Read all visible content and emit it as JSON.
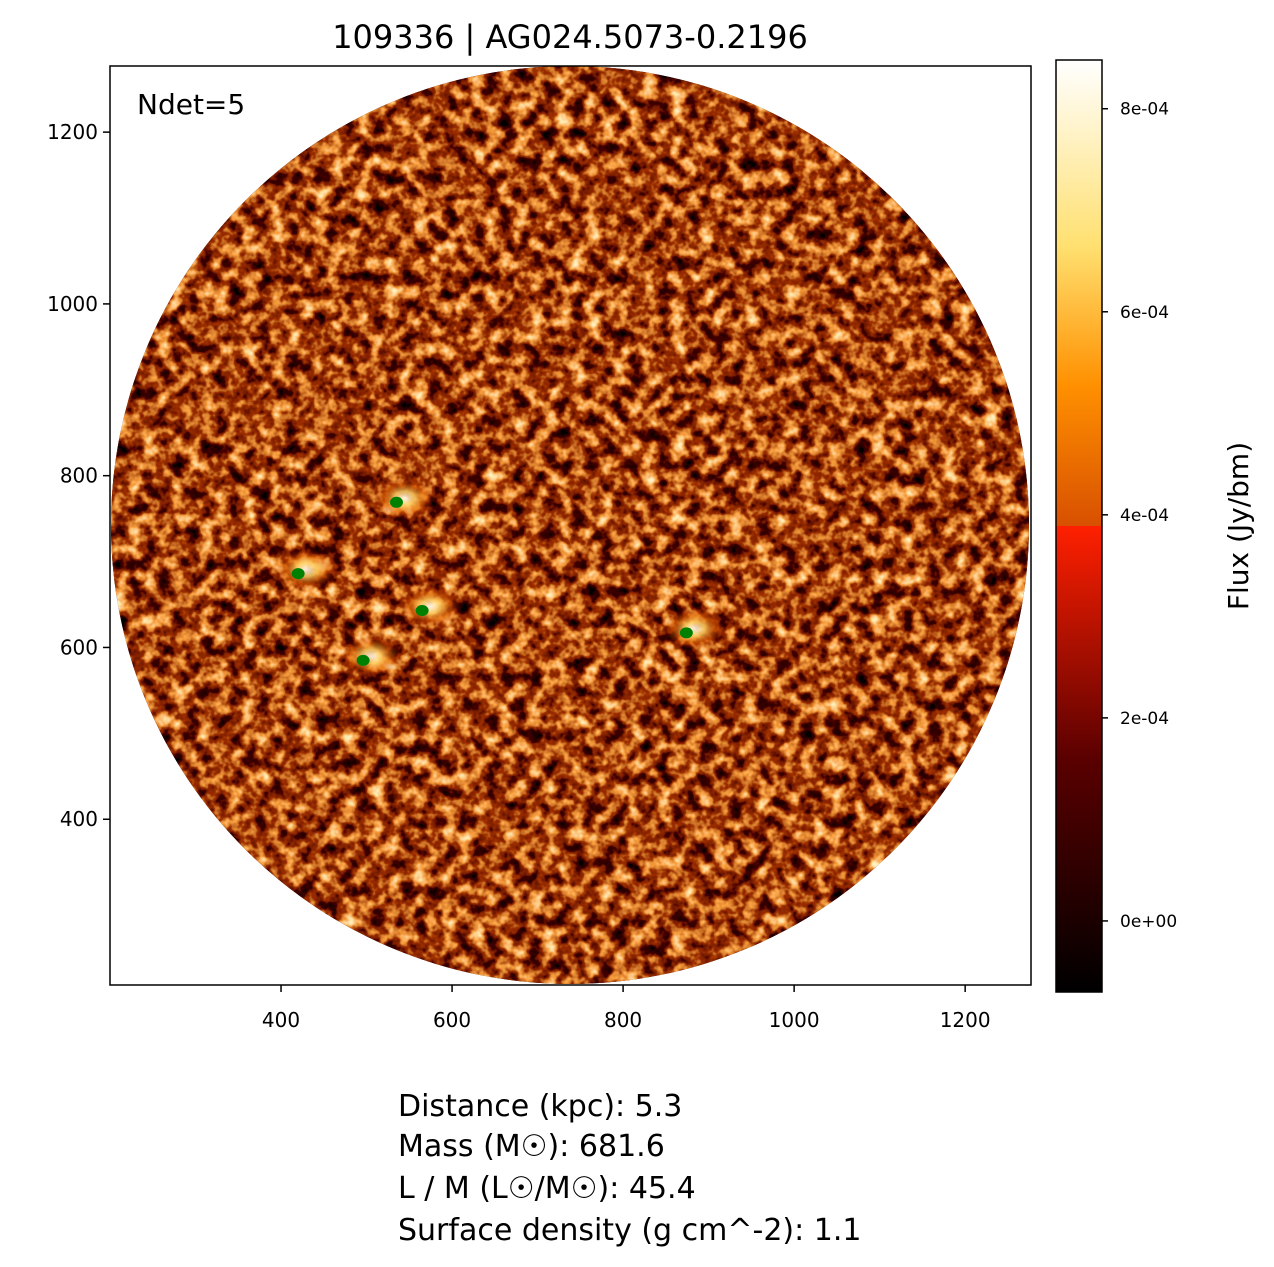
{
  "chart_data": {
    "type": "image",
    "title": "109336 | AG024.5073-0.2196",
    "annotation": "Ndet=5",
    "xlim": [
      200,
      1277
    ],
    "ylim": [
      207,
      1277
    ],
    "xticks": [
      400,
      600,
      800,
      1000,
      1200
    ],
    "yticks": [
      400,
      600,
      800,
      1000,
      1200
    ],
    "detections": {
      "color": "#008000",
      "x": [
        420,
        535,
        565,
        496,
        874
      ],
      "y": [
        686,
        769,
        643,
        585,
        617
      ]
    },
    "colorbar": {
      "label": "Flux (Jy/bm)",
      "lim": [
        -7e-05,
        0.000848
      ],
      "ticks": [
        {
          "value": 0,
          "label": "0e+00"
        },
        {
          "value": 0.0002,
          "label": "2e-04"
        },
        {
          "value": 0.0004,
          "label": "4e-04"
        },
        {
          "value": 0.0006,
          "label": "6e-04"
        },
        {
          "value": 0.0008,
          "label": "8e-04"
        }
      ]
    },
    "info_lines": [
      "Distance (kpc): 5.3",
      "Mass (M☉): 681.6",
      "L / M (L☉/M☉): 45.4",
      "Surface density (g cm^-2): 1.1"
    ]
  }
}
